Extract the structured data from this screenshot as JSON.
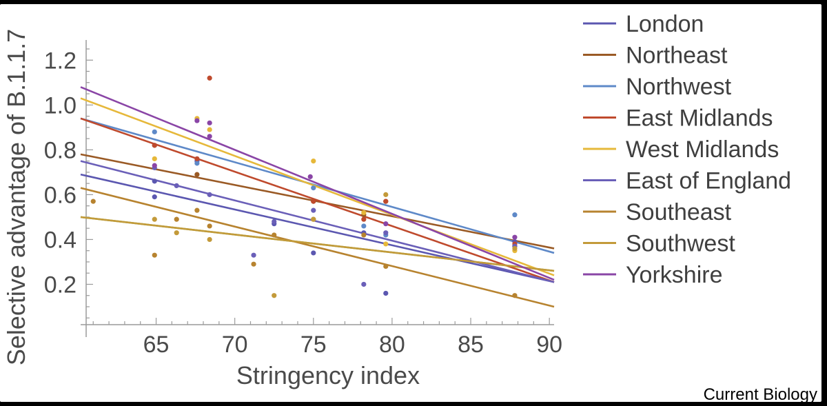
{
  "chart_data": {
    "type": "scatter",
    "xlabel": "Stringency index",
    "ylabel": "Selective advantage of B.1.1.7",
    "xlim": [
      60.2,
      90.3
    ],
    "ylim": [
      0.02,
      1.29
    ],
    "xticks": [
      65,
      70,
      75,
      80,
      85,
      90
    ],
    "yticks": [
      0.2,
      0.4,
      0.6,
      0.8,
      1.0,
      1.2
    ],
    "xtick_labels": [
      "65",
      "70",
      "75",
      "80",
      "85",
      "90"
    ],
    "ytick_labels": [
      "0.2",
      "0.4",
      "0.6",
      "0.8",
      "1.0",
      "1.2"
    ],
    "grid": false,
    "legend_position": "right",
    "series": [
      {
        "name": "London",
        "color": "#5b57b0",
        "line": {
          "x": [
            60.2,
            90.3
          ],
          "y": [
            0.69,
            0.21
          ]
        },
        "points": {
          "x": [
            64.9,
            64.9,
            67.6,
            72.5,
            75,
            78.2,
            79.6,
            87.8
          ],
          "y": [
            0.66,
            0.59,
            0.75,
            0.47,
            0.34,
            0.43,
            0.16,
            0.39
          ]
        }
      },
      {
        "name": "Northeast",
        "color": "#9a5a25",
        "line": {
          "x": [
            60.2,
            90.3
          ],
          "y": [
            0.78,
            0.36
          ]
        },
        "points": {
          "x": [
            64.9,
            67.6,
            75,
            78.2,
            79.6,
            87.8
          ],
          "y": [
            0.82,
            0.69,
            0.57,
            0.51,
            0.57,
            0.37
          ]
        }
      },
      {
        "name": "Northwest",
        "color": "#5e89c8",
        "line": {
          "x": [
            60.2,
            90.3
          ],
          "y": [
            0.94,
            0.34
          ]
        },
        "points": {
          "x": [
            64.9,
            67.6,
            75,
            78.2,
            79.6,
            87.8
          ],
          "y": [
            0.88,
            0.74,
            0.63,
            0.46,
            0.42,
            0.51
          ]
        }
      },
      {
        "name": "East Midlands",
        "color": "#bf4a2d",
        "line": {
          "x": [
            60.2,
            90.3
          ],
          "y": [
            0.94,
            0.21
          ]
        },
        "points": {
          "x": [
            64.9,
            67.6,
            68.4,
            75,
            78.2,
            79.6,
            87.8
          ],
          "y": [
            0.82,
            0.76,
            1.12,
            0.57,
            0.49,
            0.57,
            0.38
          ]
        }
      },
      {
        "name": "West Midlands",
        "color": "#e6b83a",
        "line": {
          "x": [
            60.2,
            90.3
          ],
          "y": [
            1.03,
            0.24
          ]
        },
        "points": {
          "x": [
            64.9,
            67.6,
            68.4,
            75,
            78.2,
            79.6,
            87.8
          ],
          "y": [
            0.76,
            0.94,
            0.89,
            0.75,
            0.52,
            0.38,
            0.35
          ]
        }
      },
      {
        "name": "East of England",
        "color": "#6a5fb8",
        "line": {
          "x": [
            60.2,
            90.3
          ],
          "y": [
            0.75,
            0.21
          ]
        },
        "points": {
          "x": [
            64.9,
            66.3,
            68.4,
            71.2,
            72.5,
            75,
            78.2,
            79.6,
            87.8
          ],
          "y": [
            0.72,
            0.64,
            0.6,
            0.33,
            0.48,
            0.53,
            0.2,
            0.43,
            0.37
          ]
        }
      },
      {
        "name": "Southeast",
        "color": "#b7832f",
        "line": {
          "x": [
            60.2,
            90.3
          ],
          "y": [
            0.63,
            0.1
          ]
        },
        "points": {
          "x": [
            61,
            64.9,
            66.3,
            67.6,
            68.4,
            71.2,
            72.5,
            75,
            78.2,
            79.6,
            87.8
          ],
          "y": [
            0.57,
            0.33,
            0.49,
            0.53,
            0.46,
            0.29,
            0.42,
            0.49,
            0.42,
            0.28,
            0.15
          ]
        }
      },
      {
        "name": "Southwest",
        "color": "#c39a3a",
        "line": {
          "x": [
            60.2,
            90.3
          ],
          "y": [
            0.5,
            0.26
          ]
        },
        "points": {
          "x": [
            64.9,
            66.3,
            68.4,
            72.5,
            75,
            79.6,
            87.8
          ],
          "y": [
            0.49,
            0.43,
            0.4,
            0.15,
            0.49,
            0.6,
            0.36
          ]
        }
      },
      {
        "name": "Yorkshire",
        "color": "#8a45a6",
        "line": {
          "x": [
            60.2,
            90.3
          ],
          "y": [
            1.08,
            0.22
          ]
        },
        "points": {
          "x": [
            64.9,
            67.6,
            68.4,
            68.4,
            74.8,
            79.6,
            87.8
          ],
          "y": [
            0.73,
            0.93,
            0.92,
            0.86,
            0.68,
            0.47,
            0.41
          ]
        }
      }
    ],
    "trend_line_green": {
      "color": "#7fb23a",
      "x": [
        60.2,
        90.3
      ],
      "y": [
        0.5,
        0.26
      ]
    },
    "credit": "Current Biology"
  }
}
